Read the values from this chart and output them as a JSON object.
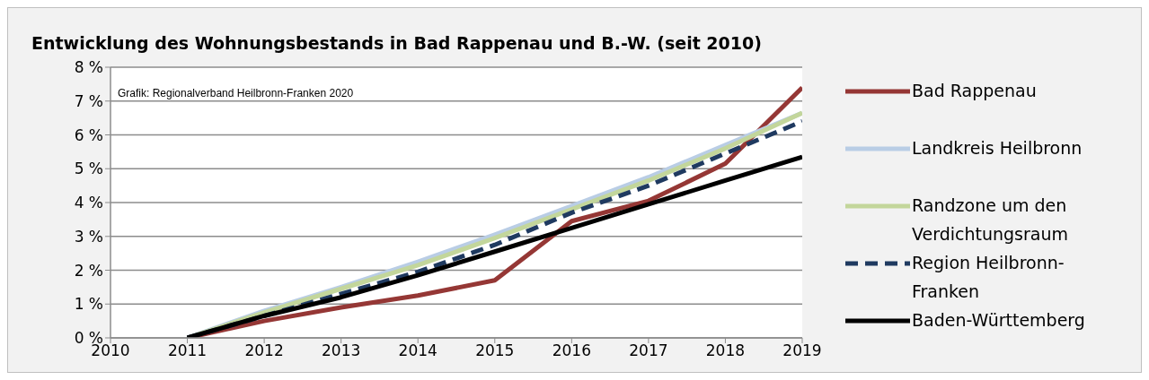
{
  "chart_data": {
    "type": "line",
    "title": "Entwicklung des Wohnungsbestands in Bad Rappenau und B.-W. (seit 2010)",
    "annotations": [
      "Grafik: Regionalverband Heilbronn-Franken 2020"
    ],
    "x": [
      2011,
      2012,
      2013,
      2014,
      2015,
      2016,
      2017,
      2018,
      2019
    ],
    "series": [
      {
        "name": "Bad Rappenau",
        "color": "#953735",
        "values": [
          0,
          0.5,
          0.9,
          1.25,
          1.7,
          3.45,
          4.05,
          5.15,
          7.4
        ]
      },
      {
        "name": "Landkreis Heilbronn",
        "color": "#b9cde5",
        "values": [
          0,
          0.8,
          1.5,
          2.25,
          3.05,
          3.9,
          4.75,
          5.7,
          6.65
        ]
      },
      {
        "name": "Randzone um den Verdichtungsraum",
        "color": "#c3d69b",
        "values": [
          0,
          0.75,
          1.45,
          2.15,
          2.95,
          3.8,
          4.65,
          5.6,
          6.65
        ]
      },
      {
        "name": "Region Heilbronn-Franken",
        "color": "#1f3a60",
        "line_style": "dashed",
        "values": [
          0,
          0.65,
          1.3,
          1.95,
          2.75,
          3.7,
          4.5,
          5.45,
          6.4
        ]
      },
      {
        "name": "Baden-Württemberg",
        "color": "#000000",
        "values": [
          0,
          0.65,
          1.2,
          1.85,
          2.55,
          3.25,
          3.95,
          4.65,
          5.35
        ]
      }
    ],
    "xlim": [
      2010,
      2019
    ],
    "xticks": [
      2010,
      2011,
      2012,
      2013,
      2014,
      2015,
      2016,
      2017,
      2018,
      2019
    ],
    "ylim": [
      0,
      8
    ],
    "yticks": [
      {
        "value": 0,
        "label": "0 %"
      },
      {
        "value": 1,
        "label": "1 %"
      },
      {
        "value": 2,
        "label": "2 %"
      },
      {
        "value": 3,
        "label": "3 %"
      },
      {
        "value": 4,
        "label": "4 %"
      },
      {
        "value": 5,
        "label": "5 %"
      },
      {
        "value": 6,
        "label": "6 %"
      },
      {
        "value": 7,
        "label": "7 %"
      },
      {
        "value": 8,
        "label": "8 %"
      }
    ],
    "grid": "y",
    "legend": "right",
    "marker": "none",
    "line_style": "solid"
  }
}
